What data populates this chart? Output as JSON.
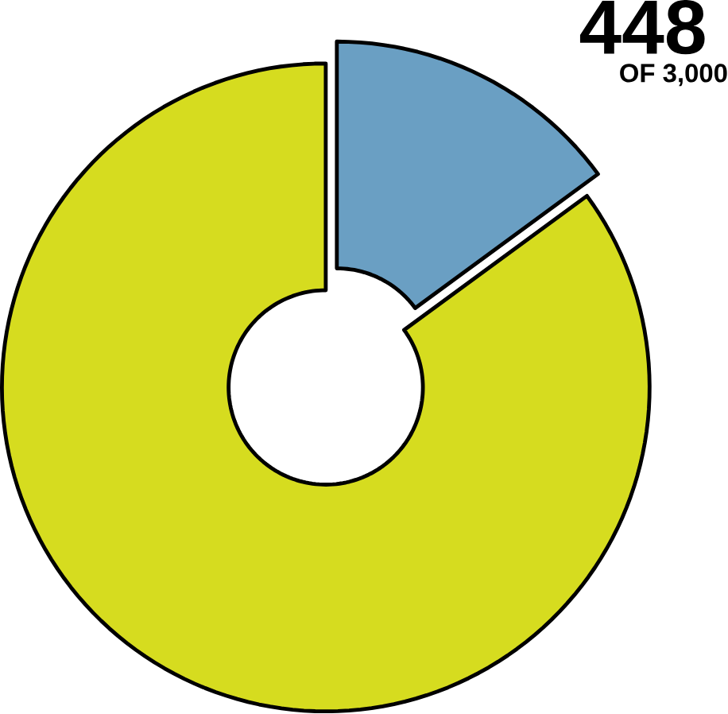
{
  "chart_data": {
    "type": "donut",
    "categories": [
      null,
      null
    ],
    "values": [
      448,
      2552
    ],
    "colors": [
      "#6a9fc3",
      "#d6dc1f"
    ],
    "value_labels": [
      "448",
      null
    ],
    "annotations": [
      "OF 3,000"
    ]
  }
}
